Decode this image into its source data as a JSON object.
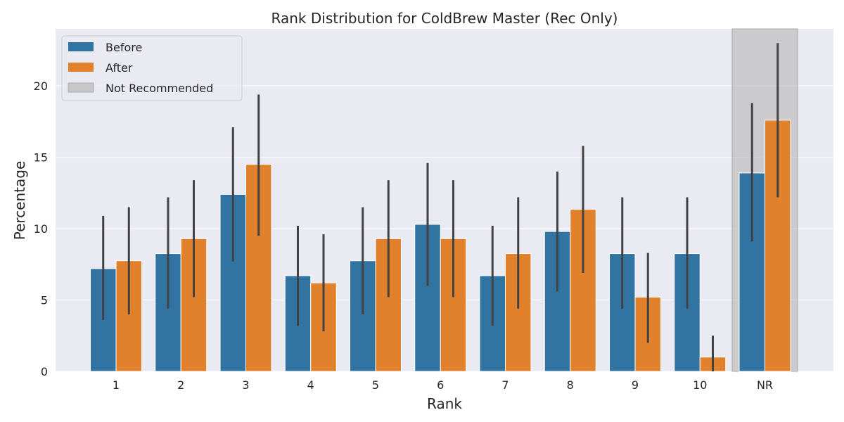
{
  "chart_data": {
    "type": "bar",
    "title": "Rank Distribution for ColdBrew Master (Rec Only)",
    "xlabel": "Rank",
    "ylabel": "Percentage",
    "categories": [
      "1",
      "2",
      "3",
      "4",
      "5",
      "6",
      "7",
      "8",
      "9",
      "10",
      "NR"
    ],
    "ylim": [
      0,
      24
    ],
    "yticks": [
      0,
      5,
      10,
      15,
      20
    ],
    "grid": true,
    "legend_position": "top-left",
    "highlight_category": "NR",
    "highlight_label": "Not Recommended",
    "series": [
      {
        "name": "Before",
        "color": "#3274a1",
        "values": [
          7.2,
          8.25,
          12.4,
          6.7,
          7.75,
          10.3,
          6.7,
          9.8,
          8.25,
          8.25,
          13.9
        ],
        "error_low": [
          3.6,
          4.4,
          7.7,
          3.2,
          4.0,
          6.0,
          3.2,
          5.6,
          4.4,
          4.4,
          9.1
        ],
        "error_high": [
          10.9,
          12.2,
          17.1,
          10.2,
          11.5,
          14.6,
          10.2,
          14.0,
          12.2,
          12.2,
          18.8
        ]
      },
      {
        "name": "After",
        "color": "#e1812c",
        "values": [
          7.75,
          9.3,
          14.5,
          6.2,
          9.3,
          9.3,
          8.25,
          11.35,
          5.2,
          1.0,
          17.6
        ],
        "error_low": [
          4.0,
          5.2,
          9.5,
          2.8,
          5.2,
          5.2,
          4.4,
          6.9,
          2.0,
          0.0,
          12.2
        ],
        "error_high": [
          11.5,
          13.4,
          19.4,
          9.6,
          13.4,
          13.4,
          12.2,
          15.8,
          8.3,
          2.5,
          23.0
        ]
      }
    ]
  }
}
